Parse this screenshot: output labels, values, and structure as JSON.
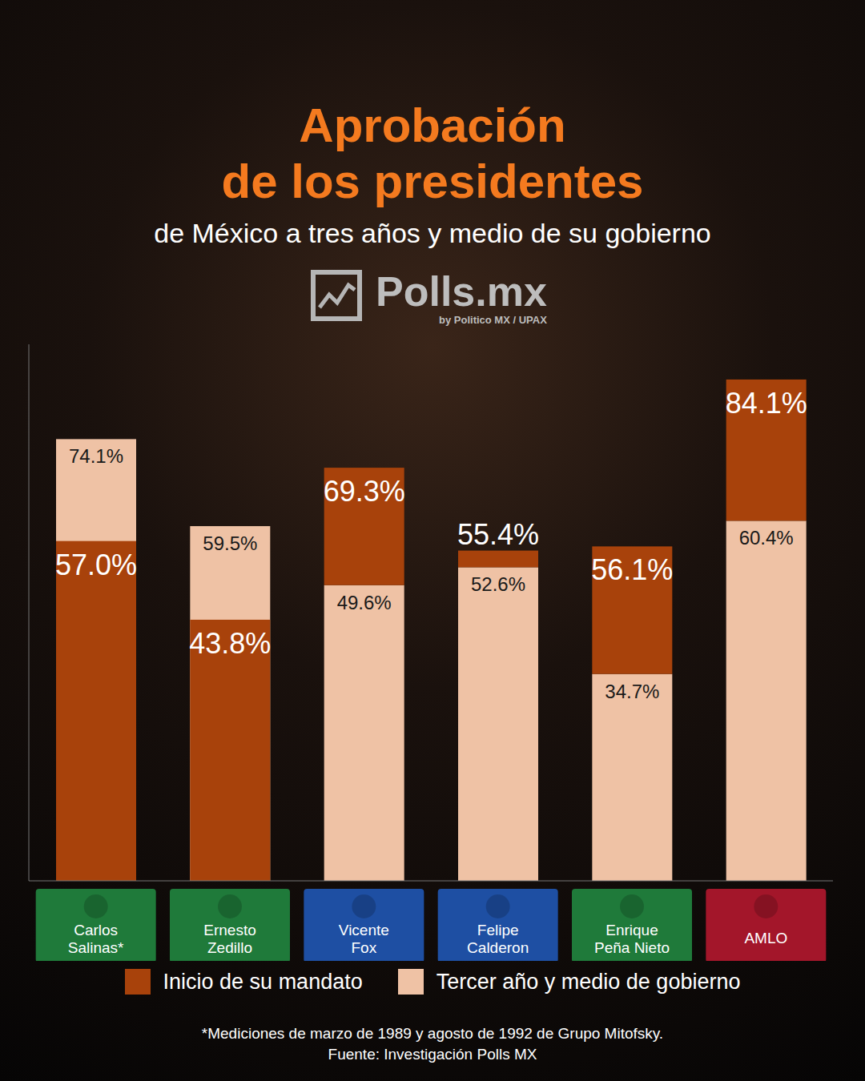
{
  "chart_data": {
    "type": "bar",
    "title": "Aprobación de los presidentes",
    "subtitle": "de México a tres años y medio de su gobierno",
    "logo": "Polls.mx",
    "logo_subtitle": "by Politico MX / UPAX",
    "categories": [
      "Carlos Salinas*",
      "Ernesto Zedillo",
      "Vicente Fox",
      "Felipe Calderon",
      "Enrique Peña Nieto",
      "AMLO"
    ],
    "series": [
      {
        "name": "Inicio de su mandato",
        "color": "#a8420b",
        "values": [
          57.0,
          43.8,
          69.3,
          55.4,
          56.1,
          84.1
        ],
        "value_labels": [
          "57.0%",
          "43.8%",
          "69.3%",
          "55.4%",
          "56.1%",
          "84.1%"
        ]
      },
      {
        "name": "Tercer año y medio de gobierno",
        "color": "#efc2a5",
        "values": [
          74.1,
          59.5,
          49.6,
          52.6,
          34.7,
          60.4
        ],
        "value_labels": [
          "74.1%",
          "59.5%",
          "49.6%",
          "52.6%",
          "34.7%",
          "60.4%"
        ]
      }
    ],
    "ylim": [
      0,
      90
    ],
    "tick_labels": "x",
    "data_labels": true,
    "legend": "bottom",
    "footnote": "*Mediciones de marzo de 1989 y agosto de 1992 de Grupo Mitofsky.",
    "source": "Fuente: Investigación Polls MX"
  }
}
